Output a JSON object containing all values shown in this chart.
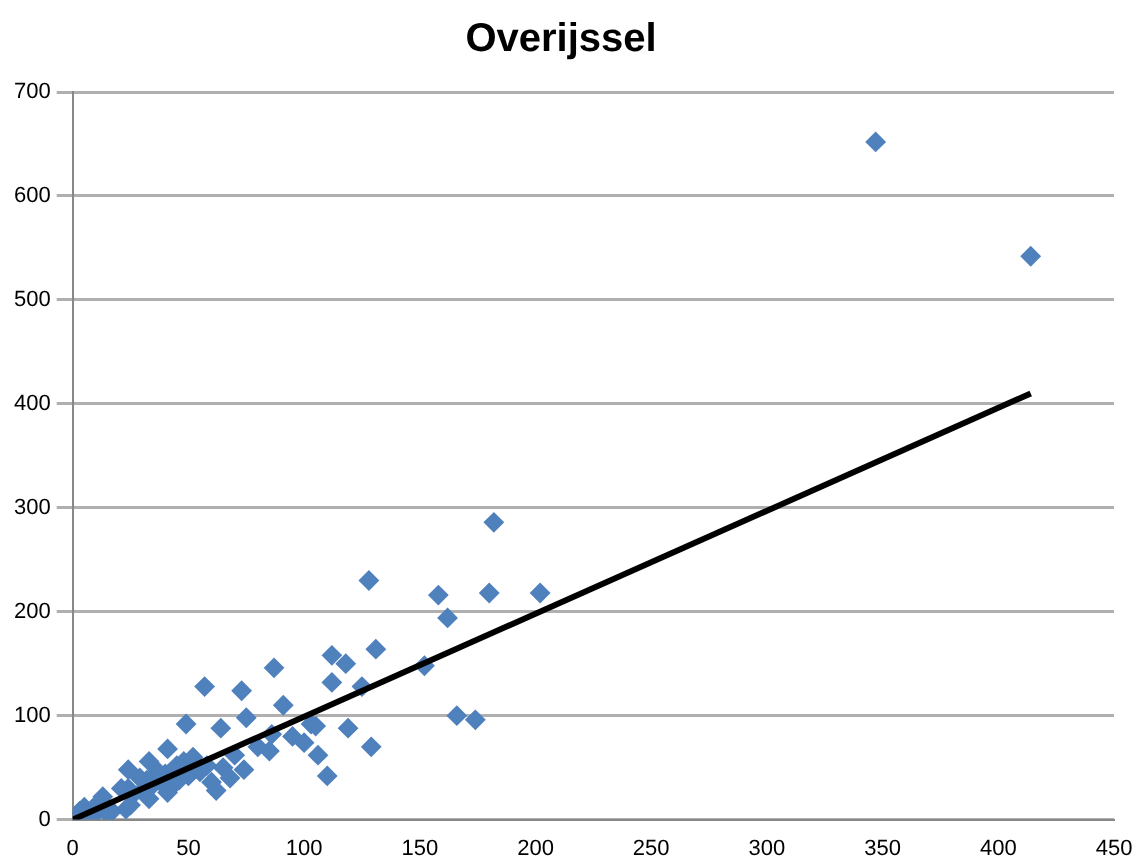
{
  "chart_data": {
    "type": "scatter",
    "title": "Overijssel",
    "xlim": [
      0,
      450
    ],
    "xticks": [
      0,
      50,
      100,
      150,
      200,
      250,
      300,
      350,
      400,
      450
    ],
    "ylim": [
      0,
      700
    ],
    "yticks": [
      0,
      100,
      200,
      300,
      400,
      500,
      600,
      700
    ],
    "grid": "y",
    "marker": "diamond",
    "legend": false,
    "series": [
      {
        "color": "#4f81bd",
        "x": [
          347,
          414,
          182,
          128,
          158,
          180,
          202,
          162,
          131,
          112,
          118,
          152,
          57,
          73,
          87,
          166,
          174,
          49,
          129,
          110,
          91,
          75,
          64,
          125,
          112,
          119,
          103,
          86,
          106,
          41,
          74,
          62,
          33,
          24,
          2,
          24,
          26,
          30,
          32,
          34,
          38,
          40,
          42,
          46,
          48,
          50,
          52,
          55,
          58,
          60,
          65,
          68,
          70,
          80,
          85,
          95,
          100,
          105,
          5,
          9,
          13,
          17,
          21,
          25,
          29,
          33,
          37,
          41,
          45,
          3,
          11,
          15,
          23
        ],
        "values": [
          652,
          542,
          286,
          230,
          216,
          218,
          218,
          194,
          164,
          158,
          150,
          148,
          128,
          124,
          146,
          100,
          96,
          92,
          70,
          42,
          110,
          98,
          88,
          128,
          132,
          88,
          92,
          82,
          62,
          68,
          48,
          28,
          56,
          48,
          2,
          30,
          24,
          28,
          38,
          32,
          36,
          44,
          30,
          38,
          56,
          42,
          60,
          46,
          52,
          36,
          50,
          40,
          62,
          70,
          66,
          80,
          74,
          90,
          12,
          4,
          22,
          8,
          30,
          14,
          40,
          20,
          46,
          26,
          52,
          8,
          16,
          6,
          10
        ]
      },
      {
        "type": "line",
        "color": "#000000",
        "marker": "none",
        "x": [
          0,
          414
        ],
        "values": [
          0,
          410
        ]
      }
    ]
  }
}
